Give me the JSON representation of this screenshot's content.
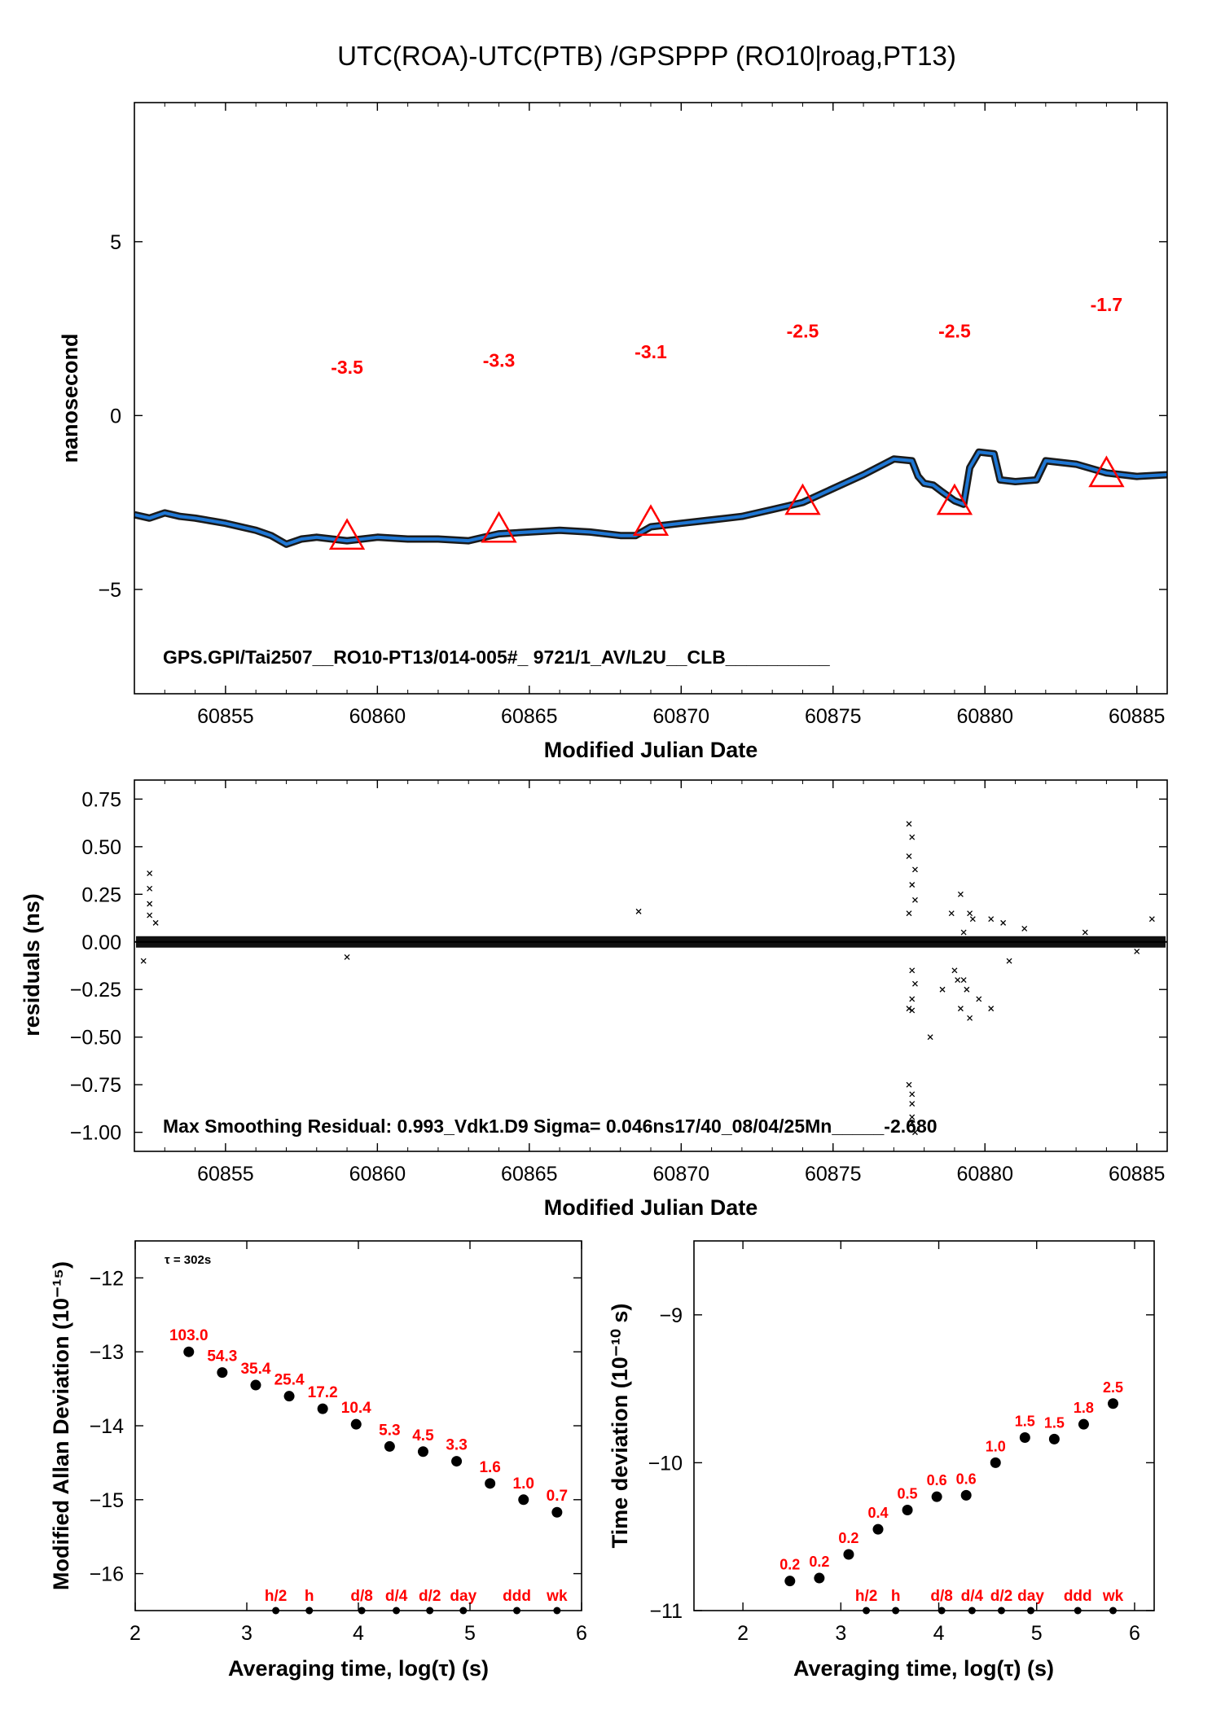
{
  "page_title": "UTC(ROA)-UTC(PTB)  /GPSPPP  (RO10|roag,PT13)",
  "chart_data": [
    {
      "type": "line",
      "name": "offset",
      "xlabel": "Modified Julian Date",
      "ylabel": "nanosecond",
      "xlim": [
        60852,
        60886
      ],
      "ylim": [
        -8,
        9
      ],
      "xticks": [
        "60855",
        "60860",
        "60865",
        "60870",
        "60875",
        "60880",
        "60885"
      ],
      "yticks": [
        "5",
        "0",
        "−5"
      ],
      "annotation": "GPS.GPI/Tai2507__RO10-PT13/014-005#_  9721/1_AV/L2U__CLB__________",
      "series_color": "#1f77d4",
      "marker_color": "#ff0000",
      "trace": [
        [
          60852.0,
          -2.85
        ],
        [
          60852.5,
          -2.95
        ],
        [
          60853.0,
          -2.8
        ],
        [
          60853.5,
          -2.9
        ],
        [
          60854.0,
          -2.95
        ],
        [
          60855.0,
          -3.1
        ],
        [
          60856.0,
          -3.3
        ],
        [
          60856.5,
          -3.45
        ],
        [
          60857.0,
          -3.7
        ],
        [
          60857.5,
          -3.55
        ],
        [
          60858.0,
          -3.5
        ],
        [
          60859.0,
          -3.6
        ],
        [
          60860.0,
          -3.5
        ],
        [
          60861.0,
          -3.55
        ],
        [
          60862.0,
          -3.55
        ],
        [
          60863.0,
          -3.6
        ],
        [
          60864.0,
          -3.4
        ],
        [
          60865.0,
          -3.35
        ],
        [
          60866.0,
          -3.3
        ],
        [
          60867.0,
          -3.35
        ],
        [
          60868.0,
          -3.45
        ],
        [
          60868.5,
          -3.45
        ],
        [
          60869.0,
          -3.2
        ],
        [
          60870.0,
          -3.1
        ],
        [
          60871.0,
          -3.0
        ],
        [
          60872.0,
          -2.9
        ],
        [
          60873.0,
          -2.7
        ],
        [
          60874.0,
          -2.5
        ],
        [
          60875.0,
          -2.1
        ],
        [
          60876.0,
          -1.7
        ],
        [
          60877.0,
          -1.25
        ],
        [
          60877.6,
          -1.3
        ],
        [
          60877.8,
          -1.75
        ],
        [
          60878.0,
          -1.95
        ],
        [
          60878.3,
          -2.0
        ],
        [
          60878.6,
          -2.2
        ],
        [
          60879.0,
          -2.45
        ],
        [
          60879.3,
          -2.55
        ],
        [
          60879.5,
          -1.5
        ],
        [
          60879.8,
          -1.05
        ],
        [
          60880.3,
          -1.1
        ],
        [
          60880.5,
          -1.85
        ],
        [
          60881.0,
          -1.9
        ],
        [
          60881.7,
          -1.85
        ],
        [
          60882.0,
          -1.3
        ],
        [
          60883.0,
          -1.4
        ],
        [
          60884.0,
          -1.65
        ],
        [
          60885.0,
          -1.75
        ],
        [
          60886.0,
          -1.7
        ]
      ],
      "markers": [
        {
          "x": 60859,
          "y": -3.5,
          "label": "-3.5",
          "label_y": 1.2
        },
        {
          "x": 60864,
          "y": -3.3,
          "label": "-3.3",
          "label_y": 1.4
        },
        {
          "x": 60869,
          "y": -3.1,
          "label": "-3.1",
          "label_y": 1.65
        },
        {
          "x": 60874,
          "y": -2.5,
          "label": "-2.5",
          "label_y": 2.25
        },
        {
          "x": 60879,
          "y": -2.5,
          "label": "-2.5",
          "label_y": 2.25
        },
        {
          "x": 60884,
          "y": -1.7,
          "label": "-1.7",
          "label_y": 3.0
        }
      ]
    },
    {
      "type": "scatter",
      "name": "residuals",
      "xlabel": "Modified Julian Date",
      "ylabel": "residuals (ns)",
      "xlim": [
        60852,
        60886
      ],
      "ylim": [
        -1.1,
        0.85
      ],
      "xticks": [
        "60855",
        "60860",
        "60865",
        "60870",
        "60875",
        "60880",
        "60885"
      ],
      "yticks": [
        "0.75",
        "0.50",
        "0.25",
        "0.00",
        "−0.25",
        "−0.50",
        "−0.75",
        "−1.00"
      ],
      "annotation": "Max Smoothing Residual: 0.993_Vdk1.D9  Sigma= 0.046ns17/40_08/04/25Mn_____-2.680",
      "points": [
        [
          60852.5,
          0.36
        ],
        [
          60852.5,
          0.28
        ],
        [
          60852.5,
          0.2
        ],
        [
          60852.5,
          0.14
        ],
        [
          60852.7,
          0.1
        ],
        [
          60852.3,
          -0.1
        ],
        [
          60859.0,
          -0.08
        ],
        [
          60868.6,
          0.16
        ],
        [
          60877.5,
          0.62
        ],
        [
          60877.6,
          0.55
        ],
        [
          60877.5,
          0.45
        ],
        [
          60877.7,
          0.38
        ],
        [
          60877.6,
          0.3
        ],
        [
          60877.7,
          0.22
        ],
        [
          60877.5,
          0.15
        ],
        [
          60877.6,
          -0.15
        ],
        [
          60877.7,
          -0.22
        ],
        [
          60877.6,
          -0.3
        ],
        [
          60877.5,
          -0.35
        ],
        [
          60877.6,
          -0.36
        ],
        [
          60877.6,
          -0.85
        ],
        [
          60877.6,
          -0.95
        ],
        [
          60877.7,
          -1.0
        ],
        [
          60877.5,
          -0.75
        ],
        [
          60877.6,
          -0.8
        ],
        [
          60877.6,
          -0.92
        ],
        [
          60878.2,
          -0.5
        ],
        [
          60878.6,
          -0.25
        ],
        [
          60878.9,
          0.15
        ],
        [
          60879.0,
          -0.15
        ],
        [
          60879.1,
          -0.2
        ],
        [
          60879.2,
          -0.35
        ],
        [
          60879.3,
          -0.2
        ],
        [
          60879.2,
          0.25
        ],
        [
          60879.5,
          0.15
        ],
        [
          60879.6,
          0.12
        ],
        [
          60879.4,
          -0.25
        ],
        [
          60879.5,
          -0.4
        ],
        [
          60879.3,
          0.05
        ],
        [
          60879.8,
          -0.3
        ],
        [
          60880.2,
          0.12
        ],
        [
          60880.2,
          -0.35
        ],
        [
          60880.6,
          0.1
        ],
        [
          60880.8,
          -0.1
        ],
        [
          60881.3,
          0.07
        ],
        [
          60883.3,
          0.05
        ],
        [
          60885.5,
          0.12
        ],
        [
          60885.0,
          -0.05
        ]
      ]
    },
    {
      "type": "scatter",
      "name": "modified-allan-deviation",
      "xlabel": "Averaging time, log(τ) (s)",
      "ylabel": "Modified Allan Deviation (10⁻¹⁵)",
      "xlim": [
        2,
        6
      ],
      "ylim": [
        -16.5,
        -11.5
      ],
      "xticks": [
        "2",
        "3",
        "4",
        "5",
        "6"
      ],
      "yticks": [
        "−12",
        "−13",
        "−14",
        "−15",
        "−16"
      ],
      "annotation": "τ = 302s",
      "x": [
        2.48,
        2.78,
        3.08,
        3.38,
        3.68,
        3.98,
        4.28,
        4.58,
        4.88,
        5.18,
        5.48,
        5.78
      ],
      "values": [
        -13.0,
        -13.28,
        -13.45,
        -13.6,
        -13.77,
        -13.98,
        -14.28,
        -14.35,
        -14.48,
        -14.78,
        -15.0,
        -15.17
      ],
      "labels": [
        "103.0",
        "54.3",
        "35.4",
        "25.4",
        "17.2",
        "10.4",
        "5.3",
        "4.5",
        "3.3",
        "1.6",
        "1.0",
        "0.7"
      ],
      "markers": [
        {
          "x": 3.26,
          "label": "h/2"
        },
        {
          "x": 3.56,
          "label": "h"
        },
        {
          "x": 4.03,
          "label": "d/8"
        },
        {
          "x": 4.34,
          "label": "d/4"
        },
        {
          "x": 4.64,
          "label": "d/2"
        },
        {
          "x": 4.94,
          "label": "day"
        },
        {
          "x": 5.42,
          "label": "ddd"
        },
        {
          "x": 5.78,
          "label": "wk"
        }
      ]
    },
    {
      "type": "scatter",
      "name": "time-deviation",
      "xlabel": "Averaging time, log(τ) (s)",
      "ylabel": "Time deviation (10⁻¹⁰ s)",
      "xlim": [
        1.5,
        6.2
      ],
      "ylim": [
        -11,
        -8.5
      ],
      "xticks": [
        "2",
        "3",
        "4",
        "5",
        "6"
      ],
      "yticks": [
        "−9",
        "−10",
        "−11"
      ],
      "x": [
        2.48,
        2.78,
        3.08,
        3.38,
        3.68,
        3.98,
        4.28,
        4.58,
        4.88,
        5.18,
        5.48,
        5.78
      ],
      "values": [
        -10.8,
        -10.78,
        -10.62,
        -10.45,
        -10.32,
        -10.23,
        -10.22,
        -10.0,
        -9.83,
        -9.84,
        -9.74,
        -9.6
      ],
      "labels": [
        "0.2",
        "0.2",
        "0.2",
        "0.4",
        "0.5",
        "0.6",
        "0.6",
        "1.0",
        "1.5",
        "1.5",
        "1.8",
        "2.5"
      ],
      "markers": [
        {
          "x": 3.26,
          "label": "h/2"
        },
        {
          "x": 3.56,
          "label": "h"
        },
        {
          "x": 4.03,
          "label": "d/8"
        },
        {
          "x": 4.34,
          "label": "d/4"
        },
        {
          "x": 4.64,
          "label": "d/2"
        },
        {
          "x": 4.94,
          "label": "day"
        },
        {
          "x": 5.42,
          "label": "ddd"
        },
        {
          "x": 5.78,
          "label": "wk"
        }
      ]
    }
  ]
}
